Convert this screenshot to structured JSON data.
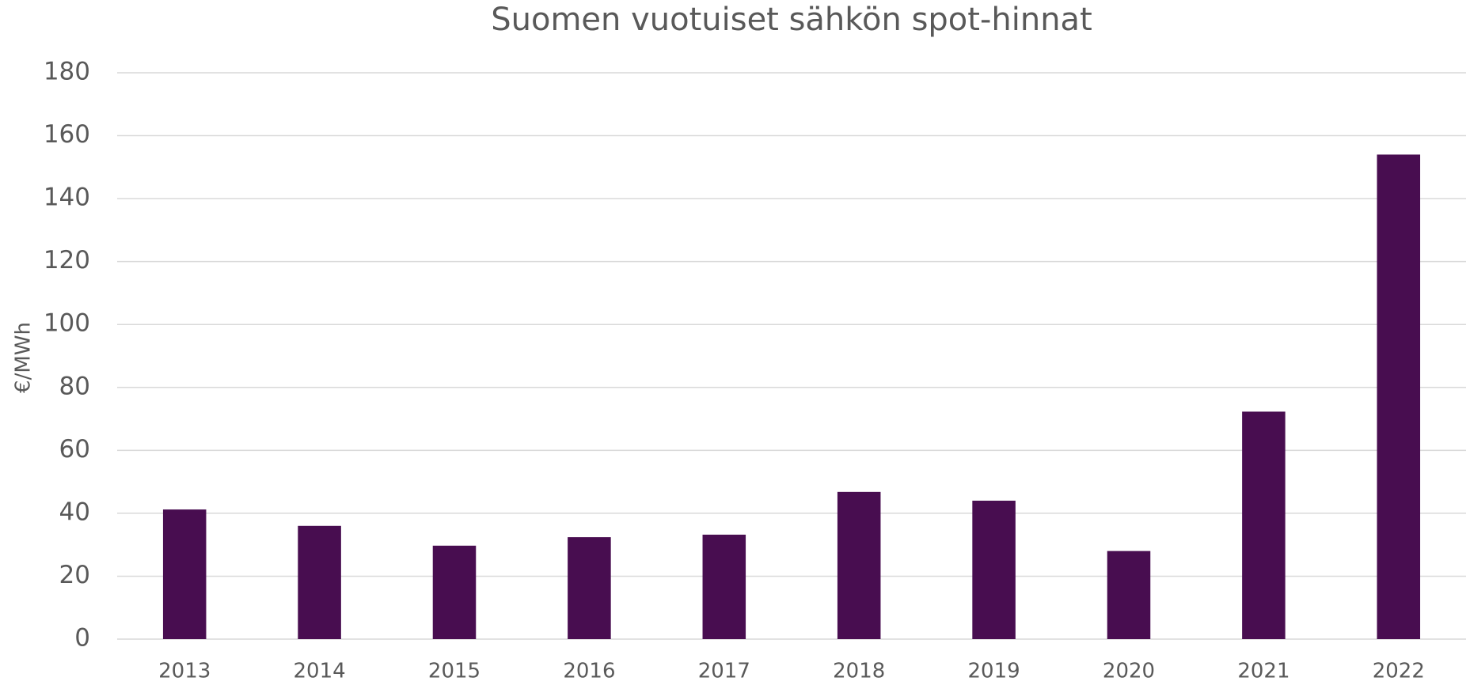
{
  "chart_data": {
    "type": "bar",
    "title": "Suomen vuotuiset sähkön spot-hinnat",
    "y_label": "€/MWh",
    "categories": [
      "2013",
      "2014",
      "2015",
      "2016",
      "2017",
      "2018",
      "2019",
      "2020",
      "2021",
      "2022"
    ],
    "values": [
      41.2,
      36.0,
      29.7,
      32.4,
      33.2,
      46.8,
      44.0,
      28.0,
      72.3,
      154.0
    ],
    "color": "#480d50",
    "ylim": [
      0,
      180
    ],
    "yticks": [
      0,
      20,
      40,
      60,
      80,
      100,
      120,
      140,
      160,
      180
    ],
    "grid": true
  }
}
